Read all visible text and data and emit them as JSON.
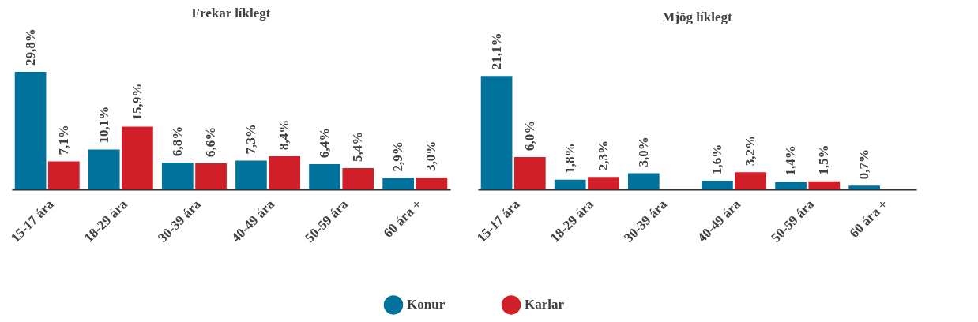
{
  "chart_data": [
    {
      "type": "bar",
      "title": "Frekar líklegt",
      "legend": "bottom",
      "categories": [
        "15-17 ára",
        "18-29 ára",
        "30-39 ára",
        "40-49 ára",
        "50-59 ára",
        "60 ára +"
      ],
      "series": [
        {
          "name": "Konur",
          "color": "#00729c",
          "values": [
            29.8,
            10.1,
            6.8,
            7.3,
            6.4,
            2.9
          ],
          "value_labels": [
            "29,8%",
            "10,1%",
            "6,8%",
            "7,3%",
            "6,4%",
            "2,9%"
          ]
        },
        {
          "name": "Karlar",
          "color": "#d11f2a",
          "values": [
            7.1,
            15.9,
            6.6,
            8.4,
            5.4,
            3.0
          ],
          "value_labels": [
            "7,1%",
            "15,9%",
            "6,6%",
            "8,4%",
            "5,4%",
            "3,0%"
          ]
        }
      ]
    },
    {
      "type": "bar",
      "title": "Mjög líklegt",
      "legend": "bottom",
      "categories": [
        "15-17 ára",
        "18-29 ára",
        "30-39 ára",
        "40-49 ára",
        "50-59 ára",
        "60 ára +"
      ],
      "series": [
        {
          "name": "Konur",
          "color": "#00729c",
          "values": [
            21.1,
            1.8,
            3.0,
            1.6,
            1.4,
            0.7
          ],
          "value_labels": [
            "21,1%",
            "1,8%",
            "3,0%",
            "1,6%",
            "1,4%",
            "0,7%"
          ]
        },
        {
          "name": "Karlar",
          "color": "#d11f2a",
          "values": [
            6.0,
            2.3,
            null,
            3.2,
            1.5,
            null
          ],
          "value_labels": [
            "6,0%",
            "2,3%",
            null,
            "3,2%",
            "1,5%",
            null
          ]
        }
      ]
    }
  ]
}
